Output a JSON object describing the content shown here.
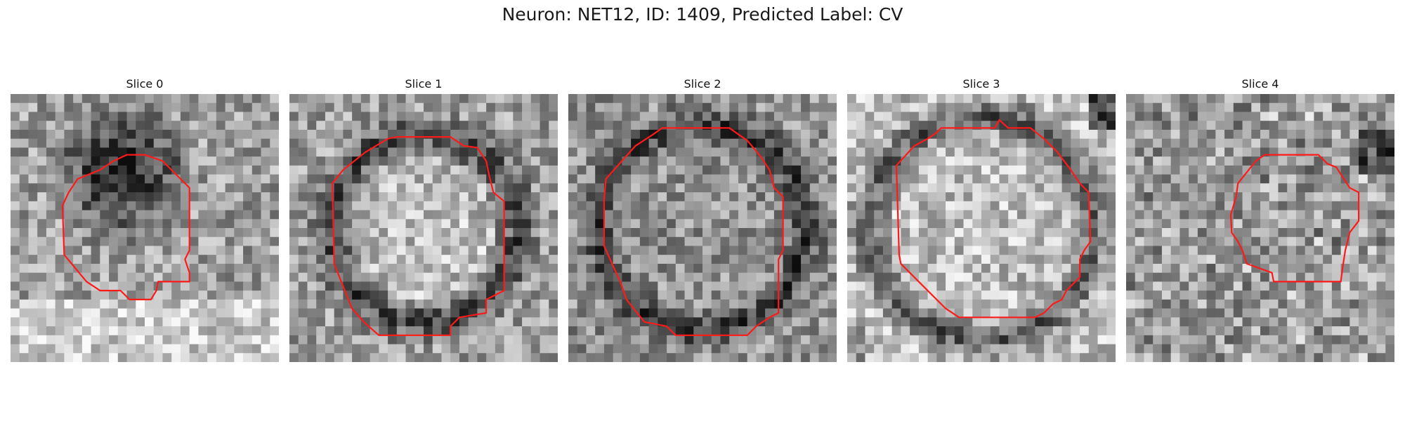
{
  "figure": {
    "suptitle": "Neuron: NET12, ID: 1409, Predicted Label: CV"
  },
  "panels": [
    {
      "title": "Slice 0",
      "seed": 11,
      "pattern": "dark_top"
    },
    {
      "title": "Slice 1",
      "seed": 23,
      "pattern": "ring"
    },
    {
      "title": "Slice 2",
      "seed": 37,
      "pattern": "ring_dark"
    },
    {
      "title": "Slice 3",
      "seed": 41,
      "pattern": "ring_light"
    },
    {
      "title": "Slice 4",
      "seed": 59,
      "pattern": "speckle"
    }
  ],
  "contour_color": "#ff1a1a",
  "colormap": "gray"
}
